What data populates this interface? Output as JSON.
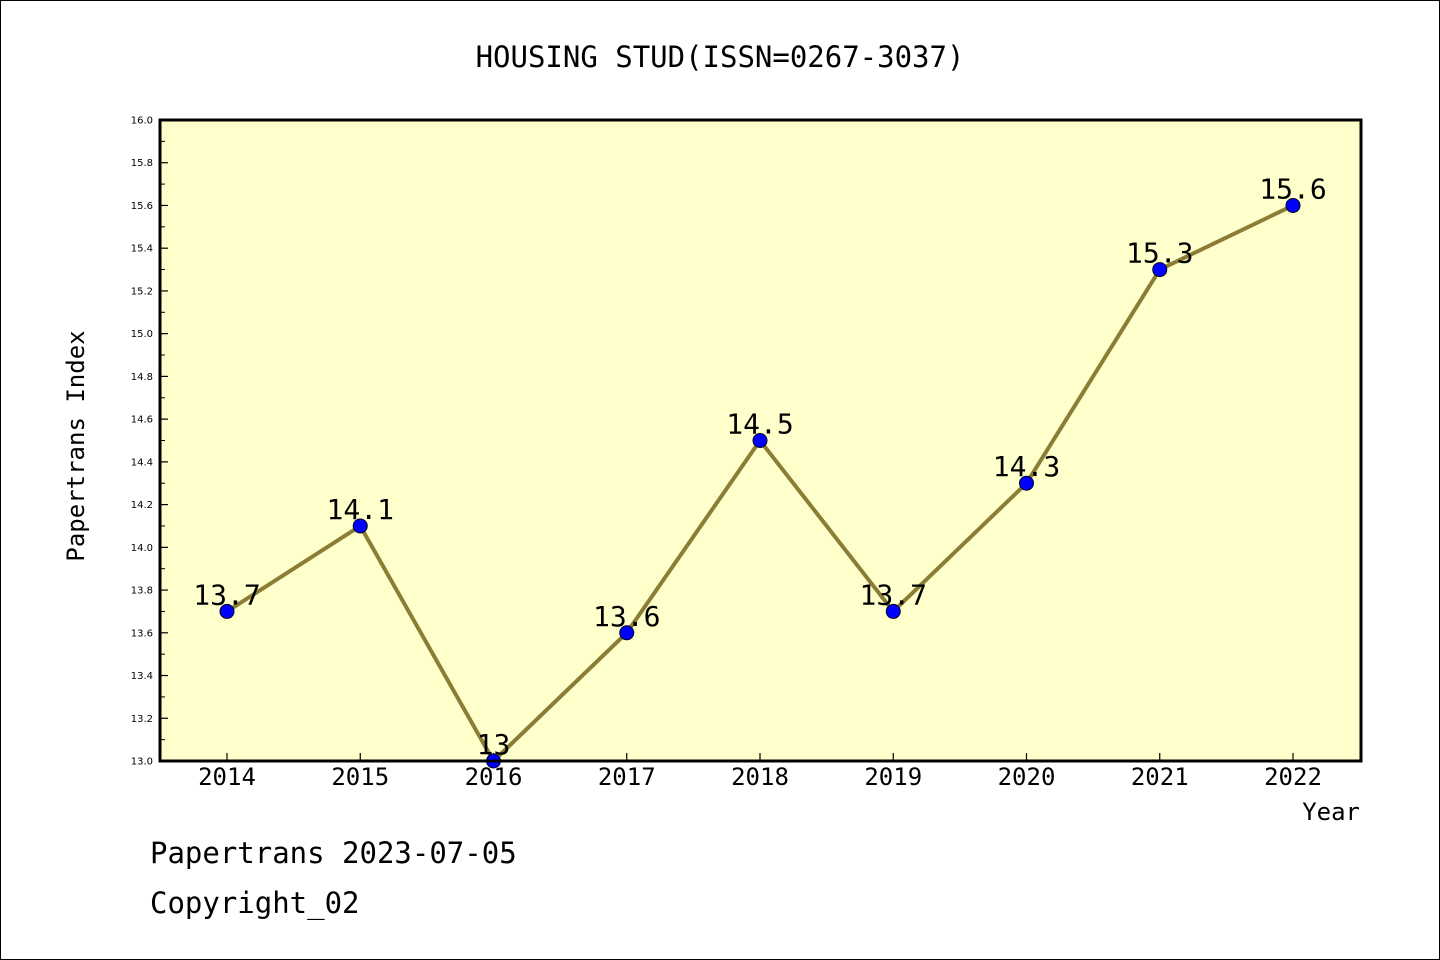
{
  "chart_data": {
    "type": "line",
    "title": "HOUSING STUD(ISSN=0267-3037)",
    "xlabel": "Year",
    "ylabel": "Papertrans Index",
    "categories": [
      "2014",
      "2015",
      "2016",
      "2017",
      "2018",
      "2019",
      "2020",
      "2021",
      "2022"
    ],
    "series": [
      {
        "values": [
          13.7,
          14.1,
          13.0,
          13.6,
          14.5,
          13.7,
          14.3,
          15.3,
          15.6
        ],
        "labels": [
          "13.7",
          "14.1",
          "13",
          "13.6",
          "14.5",
          "13.7",
          "14.3",
          "15.3",
          "15.6"
        ]
      }
    ],
    "ylim": [
      13.0,
      16.0
    ],
    "yticks": [
      "13.0",
      "13.2",
      "13.4",
      "13.6",
      "13.8",
      "14.0",
      "14.2",
      "14.4",
      "14.6",
      "14.8",
      "15.0",
      "15.2",
      "15.4",
      "15.6",
      "15.8",
      "16.0"
    ],
    "grid": false,
    "legend": "none",
    "colors": {
      "plot_background": "#ffffcc",
      "line": "#8b7d35",
      "marker": "#0000ff"
    }
  },
  "footer": {
    "line1": "Papertrans 2023-07-05",
    "line2": "Copyright_02"
  }
}
